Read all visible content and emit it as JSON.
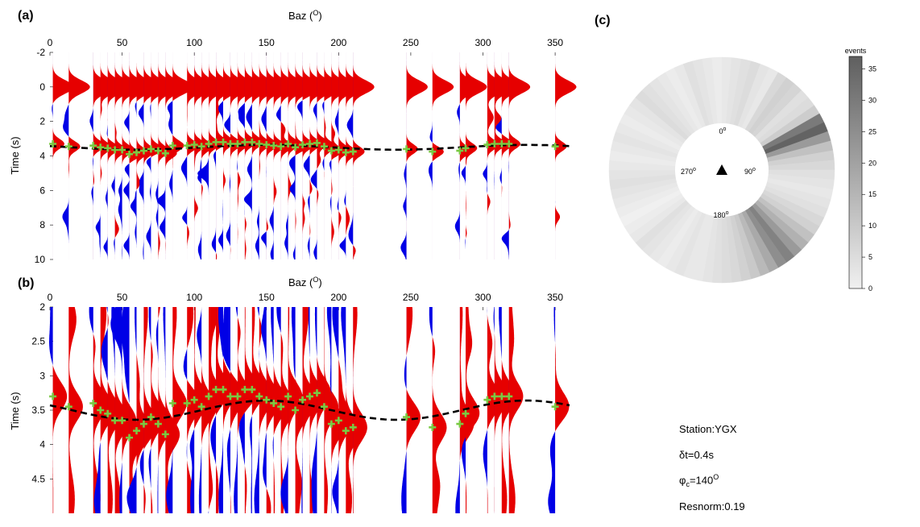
{
  "chart_data": [
    {
      "panel": "(a)",
      "type": "line",
      "xlabel": "Baz (",
      "xlabel_sup": "O",
      "xlabel_end": ")",
      "ylabel": "Time (s)",
      "xlim": [
        0,
        360
      ],
      "ylim": [
        -2,
        10
      ],
      "y_reversed": true,
      "x_ticks": [
        0,
        50,
        100,
        150,
        200,
        250,
        300,
        350
      ],
      "y_ticks": [
        -2,
        0,
        2,
        4,
        6,
        8,
        10
      ],
      "positive_color": "#e60000",
      "negative_color": "#0000e6",
      "marker_color": "#7ac943",
      "curve_color": "#000000",
      "traces_baz": [
        2,
        13,
        30,
        35,
        40,
        45,
        50,
        55,
        60,
        65,
        70,
        75,
        80,
        85,
        95,
        100,
        105,
        110,
        115,
        120,
        125,
        130,
        135,
        140,
        145,
        150,
        155,
        160,
        165,
        170,
        175,
        180,
        185,
        190,
        195,
        200,
        205,
        210,
        247,
        265,
        284,
        288,
        303,
        308,
        313,
        318,
        350
      ],
      "pick_times": [
        3.3,
        3.45,
        3.4,
        3.5,
        3.55,
        3.65,
        3.65,
        3.9,
        3.8,
        3.7,
        3.6,
        3.7,
        3.85,
        3.4,
        3.4,
        3.35,
        3.45,
        3.3,
        3.2,
        3.2,
        3.3,
        3.3,
        3.2,
        3.2,
        3.3,
        3.35,
        3.4,
        3.45,
        3.3,
        3.5,
        3.35,
        3.3,
        3.25,
        3.45,
        3.7,
        3.65,
        3.8,
        3.75,
        3.6,
        3.75,
        3.7,
        3.55,
        3.35,
        3.3,
        3.3,
        3.3,
        3.45
      ],
      "predicted_curve": {
        "mean": 3.5,
        "amplitude": 0.14,
        "phase_deg": 60
      }
    },
    {
      "panel": "(b)",
      "type": "line",
      "xlabel": "Baz (",
      "xlabel_sup": "O",
      "xlabel_end": ")",
      "ylabel": "Time (s)",
      "xlim": [
        0,
        360
      ],
      "ylim": [
        2,
        5
      ],
      "y_reversed": true,
      "x_ticks": [
        0,
        50,
        100,
        150,
        200,
        250,
        300,
        350
      ],
      "y_ticks": [
        "2",
        "2.5",
        "3",
        "3.5",
        "4",
        "4.5"
      ],
      "y_tick_values": [
        2,
        2.5,
        3,
        3.5,
        4,
        4.5
      ],
      "predicted_curve": {
        "mean": 3.5,
        "amplitude": 0.14,
        "phase_deg": 60
      }
    },
    {
      "panel": "(c)",
      "type": "heatmap",
      "projection": "polar",
      "direction_labels": [
        "0",
        "90",
        "180",
        "270"
      ],
      "direction_sup": "o",
      "station_marker": "triangle",
      "colorbar_title": "events",
      "colorbar_ticks": [
        0,
        5,
        10,
        15,
        20,
        25,
        30,
        35
      ],
      "colorbar_range": [
        0,
        37
      ],
      "colormap": [
        "#f0f0f0",
        "#5f5f5f"
      ],
      "sector_width_deg": 5,
      "sector_events": [
        2,
        3,
        4,
        5,
        3,
        2,
        6,
        8,
        7,
        4,
        5,
        9,
        30,
        36,
        22,
        12,
        8,
        6,
        4,
        3,
        2,
        3,
        4,
        6,
        8,
        12,
        16,
        22,
        28,
        25,
        18,
        14,
        10,
        8,
        6,
        5,
        4,
        3,
        2,
        2,
        3,
        2,
        1,
        2,
        3,
        4,
        2,
        1,
        0,
        1,
        2,
        3,
        4,
        3,
        2,
        1,
        2,
        3,
        2,
        1,
        2,
        3,
        5,
        4,
        3,
        2,
        1,
        2,
        4,
        3,
        2,
        1
      ]
    }
  ],
  "info": {
    "station": "Station:YGX",
    "dt_symbol": "δ",
    "dt_rest": "t=0.4s",
    "phi_symbol": "φ",
    "phi_sub": "c",
    "phi_rest": "=140",
    "phi_sup": "O",
    "resnorm": "Resnorm:0.19"
  }
}
